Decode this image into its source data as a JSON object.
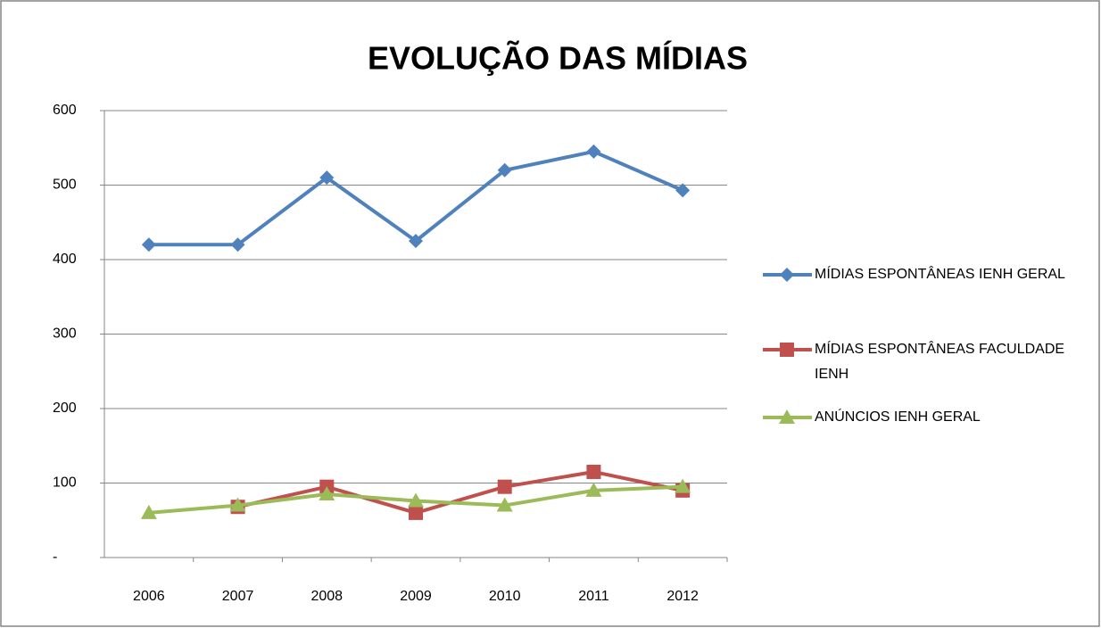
{
  "chart_data": {
    "type": "line",
    "title": "EVOLUÇÃO DAS MÍDIAS",
    "categories": [
      "2006",
      "2007",
      "2008",
      "2009",
      "2010",
      "2011",
      "2012"
    ],
    "series": [
      {
        "name": "MÍDIAS ESPONTÂNEAS IENH GERAL",
        "color": "#4f81bd",
        "marker": "diamond",
        "values": [
          420,
          420,
          510,
          425,
          520,
          545,
          493
        ]
      },
      {
        "name": "MÍDIAS ESPONTÂNEAS FACULDADE IENH",
        "color": "#c0504d",
        "marker": "square",
        "values": [
          null,
          68,
          95,
          60,
          95,
          115,
          90
        ]
      },
      {
        "name": "ANÚNCIOS IENH GERAL",
        "color": "#9bbb59",
        "marker": "triangle",
        "values": [
          60,
          70,
          85,
          76,
          70,
          90,
          95
        ]
      }
    ],
    "ylim": [
      0,
      600
    ],
    "yticks": [
      {
        "value": 0,
        "label": "-"
      },
      100,
      200,
      300,
      400,
      500,
      600
    ],
    "grid": true,
    "legend": "right"
  }
}
